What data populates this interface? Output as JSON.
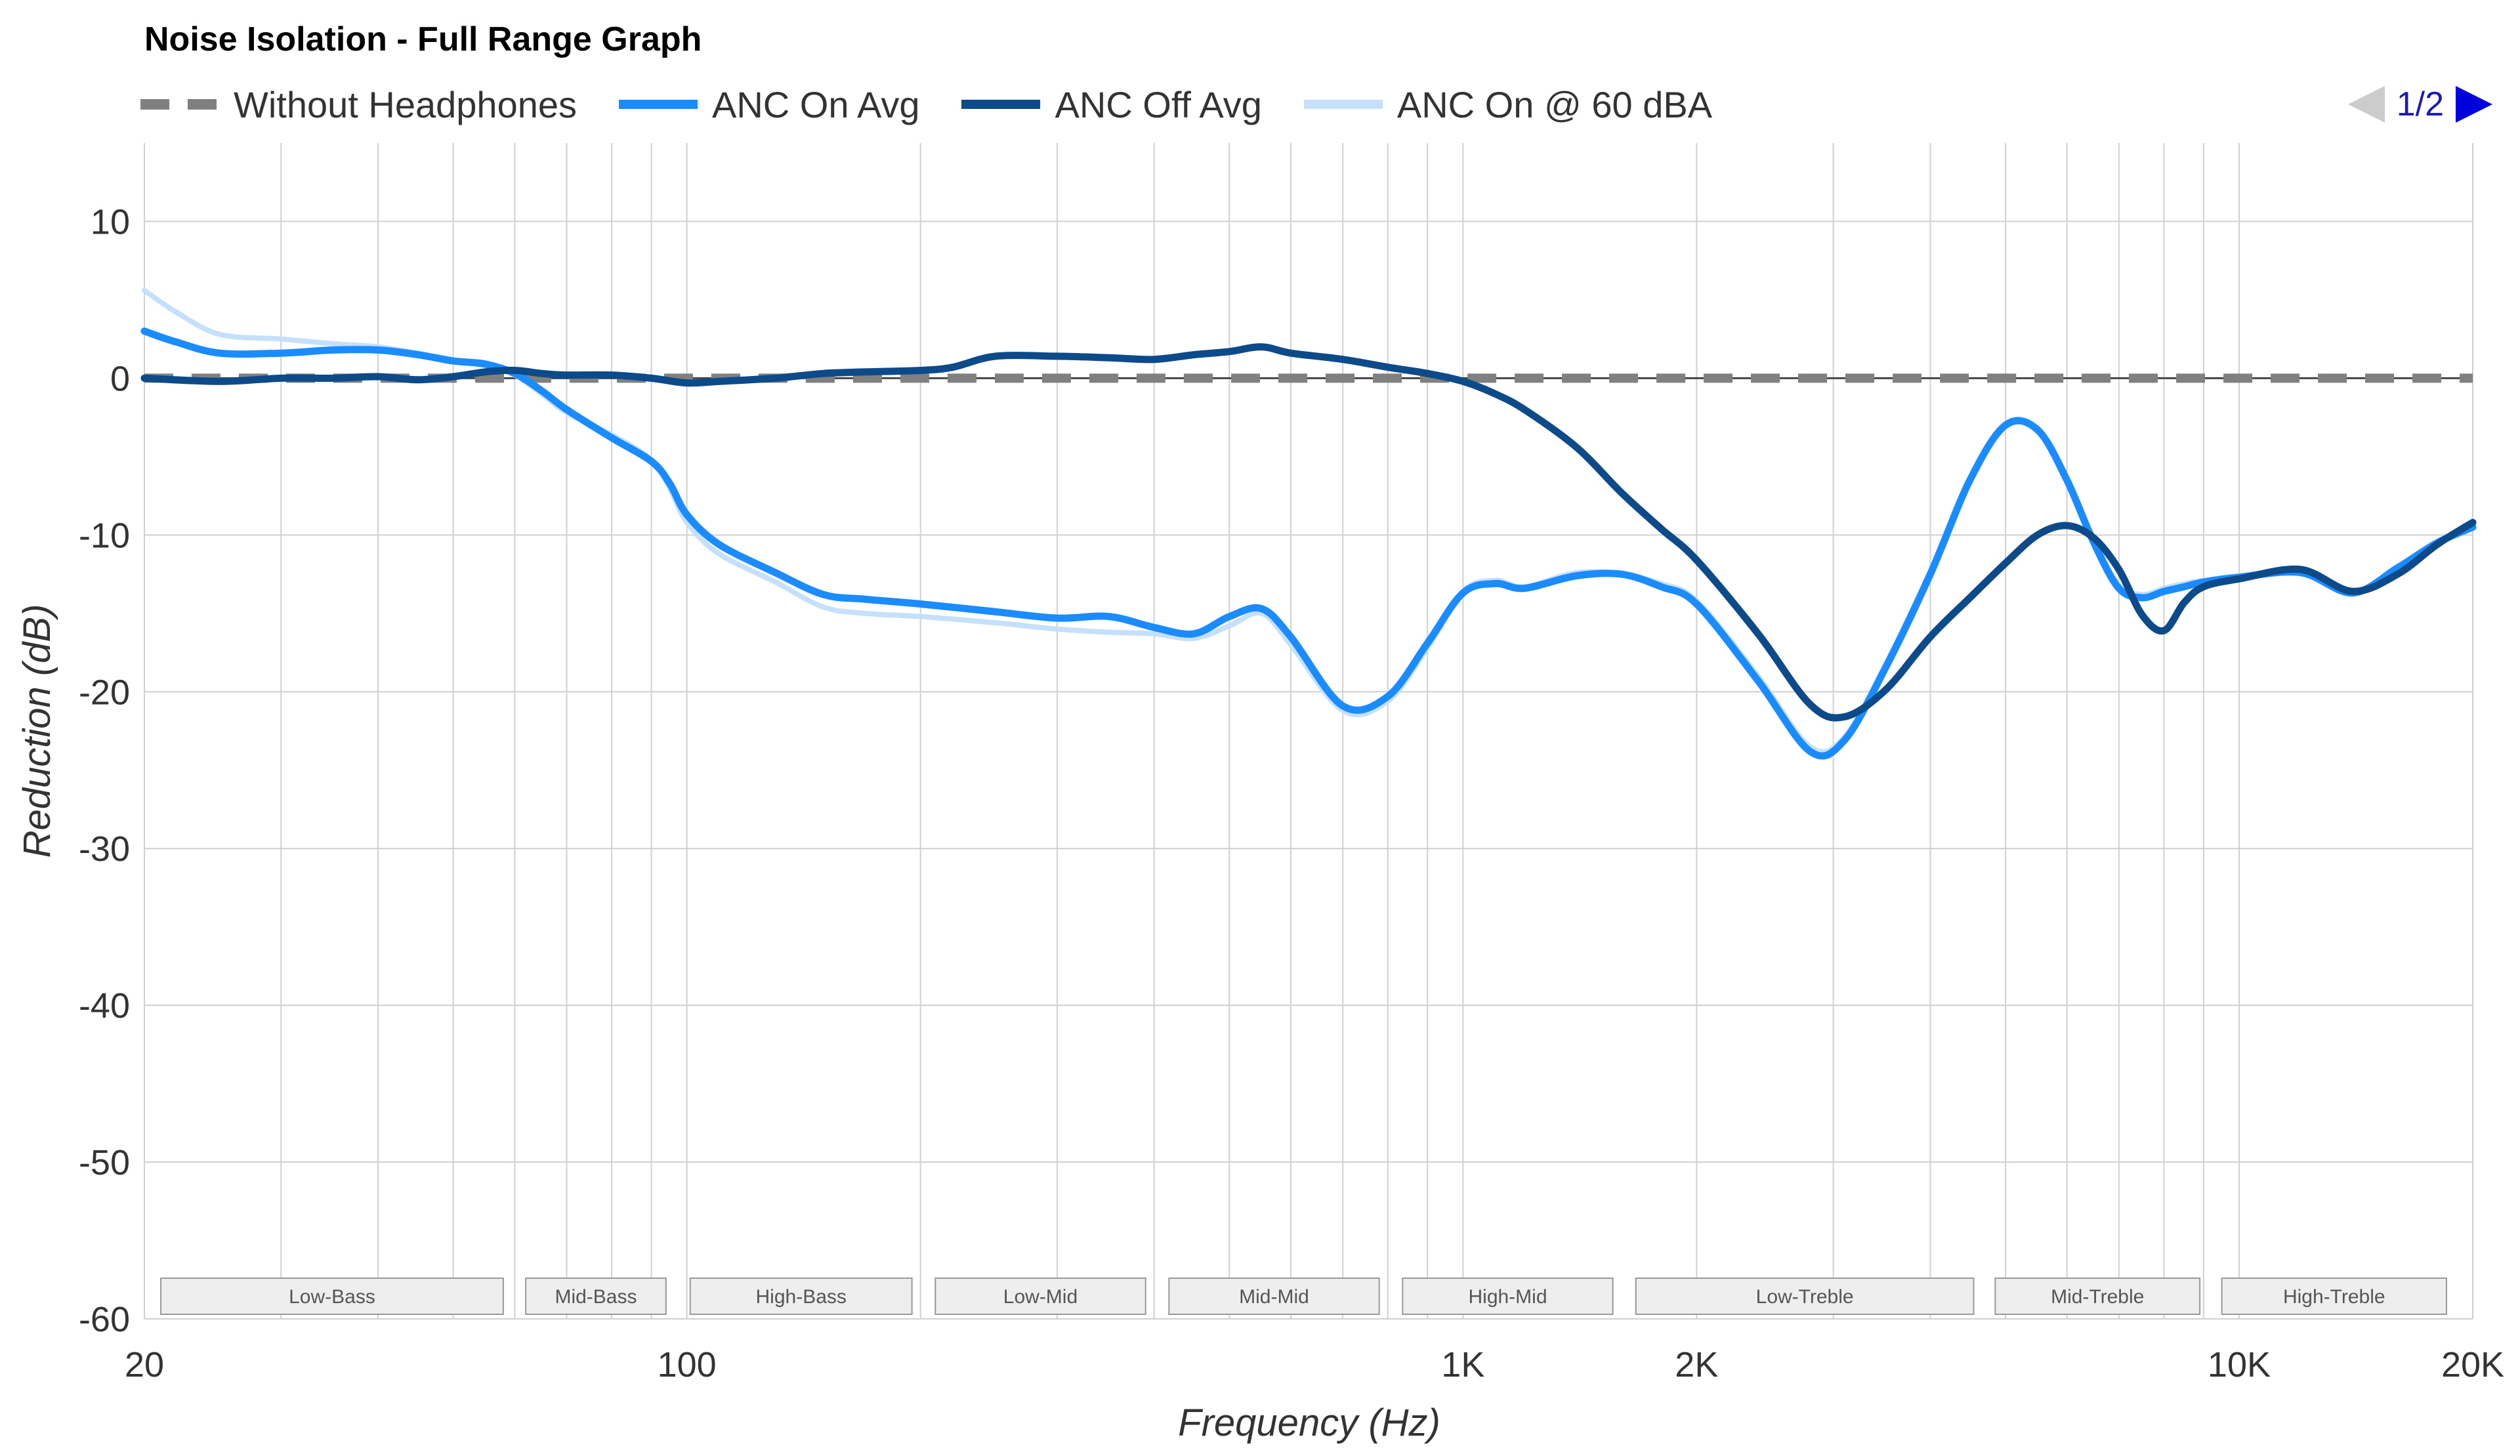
{
  "chart_data": {
    "type": "line",
    "title": "Noise Isolation - Full Range Graph",
    "xlabel": "Frequency (Hz)",
    "ylabel": "Reduction (dB)",
    "x_scale": "log",
    "xlim": [
      20,
      20000
    ],
    "ylim": [
      -60,
      15
    ],
    "grid": true,
    "legend_position": "top",
    "x_tick_labels": [
      {
        "value": 20,
        "label": "20"
      },
      {
        "value": 100,
        "label": "100"
      },
      {
        "value": 1000,
        "label": "1K"
      },
      {
        "value": 2000,
        "label": "2K"
      },
      {
        "value": 10000,
        "label": "10K"
      },
      {
        "value": 20000,
        "label": "20K"
      }
    ],
    "y_ticks": [
      10,
      0,
      -10,
      -20,
      -30,
      -40,
      -50,
      -60
    ],
    "bands": [
      {
        "label": "Low-Bass",
        "from": 21,
        "to": 58
      },
      {
        "label": "Mid-Bass",
        "from": 62,
        "to": 94
      },
      {
        "label": "High-Bass",
        "from": 101,
        "to": 195
      },
      {
        "label": "Low-Mid",
        "from": 209,
        "to": 390
      },
      {
        "label": "Mid-Mid",
        "from": 418,
        "to": 780
      },
      {
        "label": "High-Mid",
        "from": 836,
        "to": 1560
      },
      {
        "label": "Low-Treble",
        "from": 1670,
        "to": 4550
      },
      {
        "label": "Mid-Treble",
        "from": 4850,
        "to": 8900
      },
      {
        "label": "High-Treble",
        "from": 9500,
        "to": 18500
      }
    ],
    "series": [
      {
        "name": "Without Headphones",
        "color": "#808080",
        "style": "dashed",
        "x": [
          20,
          20000
        ],
        "y": [
          0,
          0
        ]
      },
      {
        "name": "ANC On Avg",
        "color": "#1a8cff",
        "style": "solid",
        "x": [
          20,
          22,
          25,
          30,
          35,
          40,
          45,
          50,
          55,
          60,
          65,
          70,
          80,
          90,
          95,
          100,
          110,
          130,
          150,
          170,
          200,
          250,
          300,
          350,
          400,
          450,
          500,
          550,
          600,
          700,
          800,
          900,
          1000,
          1100,
          1200,
          1400,
          1600,
          1800,
          2000,
          2400,
          2800,
          3100,
          3500,
          4000,
          4500,
          5000,
          5500,
          6000,
          6500,
          7000,
          7500,
          8000,
          8500,
          9000,
          10000,
          12000,
          14000,
          16000,
          18000,
          20000
        ],
        "y": [
          3,
          2.3,
          1.6,
          1.6,
          1.8,
          1.8,
          1.5,
          1.1,
          0.9,
          0.3,
          -0.8,
          -2,
          -3.8,
          -5.3,
          -6.7,
          -8.7,
          -10.6,
          -12.4,
          -13.8,
          -14.1,
          -14.4,
          -14.9,
          -15.3,
          -15.2,
          -15.9,
          -16.3,
          -15.2,
          -14.7,
          -16.5,
          -20.9,
          -20.3,
          -16.9,
          -13.7,
          -13.1,
          -13.4,
          -12.6,
          -12.5,
          -13.3,
          -14.4,
          -19.3,
          -23.8,
          -23.1,
          -18.5,
          -12.5,
          -6.5,
          -3.0,
          -3.3,
          -6.5,
          -10.5,
          -13.4,
          -14.0,
          -13.6,
          -13.3,
          -13.0,
          -12.7,
          -12.4,
          -13.7,
          -12.1,
          -10.5,
          -9.5
        ]
      },
      {
        "name": "ANC Off Avg",
        "color": "#0c4a8a",
        "style": "solid",
        "x": [
          20,
          25,
          30,
          35,
          40,
          45,
          50,
          55,
          60,
          65,
          70,
          80,
          90,
          100,
          110,
          130,
          150,
          170,
          200,
          220,
          250,
          300,
          350,
          400,
          450,
          500,
          550,
          600,
          700,
          800,
          900,
          1000,
          1100,
          1200,
          1400,
          1600,
          1800,
          2000,
          2400,
          2800,
          3100,
          3500,
          4000,
          4500,
          5000,
          5500,
          6000,
          6500,
          7000,
          7500,
          8000,
          8500,
          9000,
          10000,
          12000,
          14000,
          16000,
          18000,
          20000
        ],
        "y": [
          0,
          -0.2,
          0,
          0,
          0.1,
          -0.1,
          0.1,
          0.4,
          0.5,
          0.3,
          0.2,
          0.2,
          0,
          -0.3,
          -0.2,
          0,
          0.3,
          0.4,
          0.5,
          0.7,
          1.4,
          1.4,
          1.3,
          1.2,
          1.5,
          1.7,
          2.0,
          1.6,
          1.2,
          0.7,
          0.3,
          -0.2,
          -1.0,
          -2.0,
          -4.4,
          -7.3,
          -9.6,
          -11.6,
          -16.3,
          -20.8,
          -21.6,
          -19.9,
          -16.5,
          -14.0,
          -11.8,
          -10.0,
          -9.4,
          -10.2,
          -12.2,
          -15.1,
          -16.1,
          -14.3,
          -13.3,
          -12.8,
          -12.2,
          -13.6,
          -12.5,
          -10.6,
          -9.2
        ]
      },
      {
        "name": "ANC On @ 60 dBA",
        "color": "#c5e0fb",
        "style": "solid",
        "x": [
          20,
          22,
          25,
          30,
          35,
          40,
          45,
          50,
          55,
          60,
          65,
          70,
          80,
          90,
          95,
          100,
          110,
          130,
          150,
          170,
          200,
          250,
          300,
          350,
          400,
          450,
          500,
          550,
          600,
          700,
          800,
          900,
          1000,
          1100,
          1200,
          1400,
          1600,
          1800,
          2000,
          2400,
          2800,
          3100,
          3500,
          4000,
          4500,
          5000,
          5500,
          6000,
          6500,
          7000,
          7500,
          8000,
          8500,
          9000,
          10000,
          12000,
          14000,
          16000,
          18000,
          20000
        ],
        "y": [
          5.6,
          4.2,
          2.8,
          2.5,
          2.2,
          2.0,
          1.6,
          1.1,
          0.8,
          0.2,
          -1.0,
          -2.2,
          -3.6,
          -5.2,
          -7.0,
          -9.2,
          -11.2,
          -13.0,
          -14.6,
          -15.0,
          -15.2,
          -15.6,
          -16.0,
          -16.2,
          -16.3,
          -16.6,
          -15.8,
          -15.0,
          -17.0,
          -21.2,
          -20.6,
          -17.2,
          -13.6,
          -12.9,
          -13.3,
          -12.4,
          -12.5,
          -13.1,
          -14.2,
          -19.0,
          -23.5,
          -22.9,
          -18.3,
          -12.3,
          -6.4,
          -2.9,
          -3.2,
          -6.4,
          -10.3,
          -13.2,
          -13.8,
          -13.4,
          -13.1,
          -12.9,
          -12.6,
          -12.3,
          -13.6,
          -12.0,
          -10.4,
          -9.4
        ]
      }
    ]
  },
  "pager": {
    "label": "1/2"
  },
  "colors": {
    "grid": "#d0d0d0",
    "zero_line": "#444444",
    "band_fill": "#eeeeee",
    "band_stroke": "#999999"
  }
}
